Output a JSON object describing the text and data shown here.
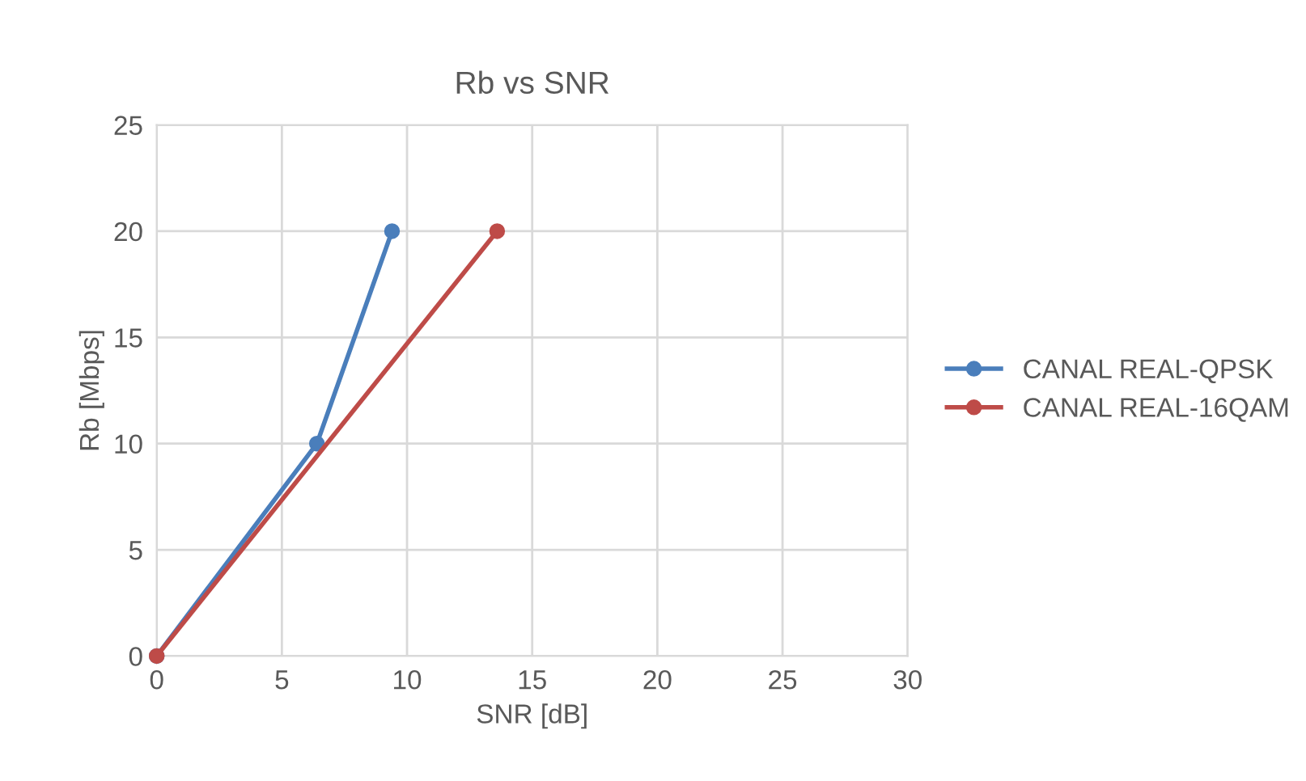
{
  "chart_data": {
    "type": "line",
    "title": "Rb vs SNR",
    "xlabel": "SNR [dB]",
    "ylabel": "Rb [Mbps]",
    "series": [
      {
        "name": "CANAL REAL-QPSK",
        "color": "#4a7ebb",
        "x": [
          0,
          6.4,
          9.4
        ],
        "values": [
          0,
          10,
          20
        ]
      },
      {
        "name": "CANAL REAL-16QAM",
        "color": "#be4b48",
        "x": [
          0,
          13.6
        ],
        "values": [
          0,
          20
        ]
      }
    ],
    "xlim": [
      0,
      30
    ],
    "xticks": [
      0,
      5,
      10,
      15,
      20,
      25,
      30
    ],
    "ylim": [
      0,
      25
    ],
    "yticks": [
      0,
      5,
      10,
      15,
      20,
      25
    ],
    "grid": true,
    "legend": "right",
    "marker": "circle",
    "line_style": "solid"
  }
}
